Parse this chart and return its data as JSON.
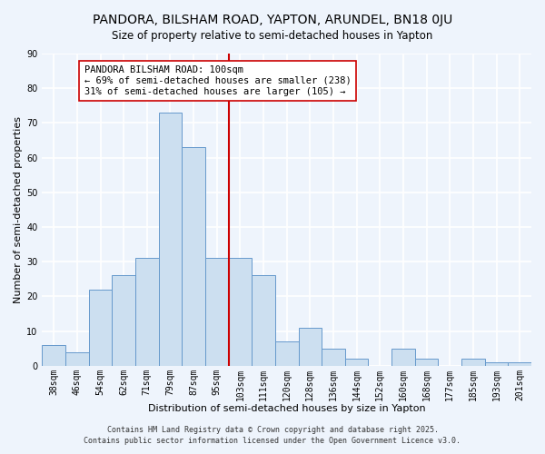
{
  "title": "PANDORA, BILSHAM ROAD, YAPTON, ARUNDEL, BN18 0JU",
  "subtitle": "Size of property relative to semi-detached houses in Yapton",
  "xlabel": "Distribution of semi-detached houses by size in Yapton",
  "ylabel": "Number of semi-detached properties",
  "bar_labels": [
    "38sqm",
    "46sqm",
    "54sqm",
    "62sqm",
    "71sqm",
    "79sqm",
    "87sqm",
    "95sqm",
    "103sqm",
    "111sqm",
    "120sqm",
    "128sqm",
    "136sqm",
    "144sqm",
    "152sqm",
    "160sqm",
    "168sqm",
    "177sqm",
    "185sqm",
    "193sqm",
    "201sqm"
  ],
  "bar_values": [
    6,
    4,
    22,
    26,
    31,
    73,
    63,
    31,
    31,
    26,
    7,
    11,
    5,
    2,
    0,
    5,
    2,
    0,
    2,
    1,
    1
  ],
  "bar_color": "#ccdff0",
  "bar_edge_color": "#6699cc",
  "ylim": [
    0,
    90
  ],
  "yticks": [
    0,
    10,
    20,
    30,
    40,
    50,
    60,
    70,
    80,
    90
  ],
  "vline_x": 8.0,
  "vline_color": "#cc0000",
  "annotation_title": "PANDORA BILSHAM ROAD: 100sqm",
  "annotation_line1": "← 69% of semi-detached houses are smaller (238)",
  "annotation_line2": "31% of semi-detached houses are larger (105) →",
  "footer1": "Contains HM Land Registry data © Crown copyright and database right 2025.",
  "footer2": "Contains public sector information licensed under the Open Government Licence v3.0.",
  "background_color": "#eef4fc",
  "grid_color": "#ffffff",
  "title_fontsize": 10,
  "subtitle_fontsize": 8.5,
  "label_fontsize": 8,
  "tick_fontsize": 7,
  "footer_fontsize": 6,
  "annotation_fontsize": 7.5
}
